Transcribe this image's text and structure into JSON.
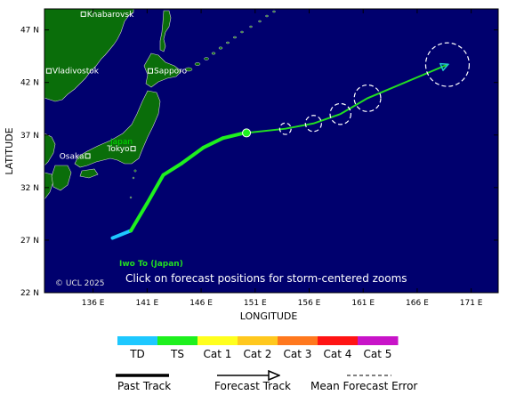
{
  "map": {
    "axes": {
      "xlabel": "LONGITUDE",
      "ylabel": "LATITUDE",
      "x_ticks": [
        "136 E",
        "141 E",
        "146 E",
        "151 E",
        "156 E",
        "161 E",
        "166 E",
        "171 E"
      ],
      "y_ticks": [
        "47 N",
        "42 N",
        "37 N",
        "32 N",
        "27 N",
        "22 N"
      ],
      "lon_range": [
        131.5,
        173.5
      ],
      "lat_range": [
        22,
        49
      ]
    },
    "colors": {
      "ocean": "#00006e",
      "land": "#0a6e0a",
      "forecast_track": "#22dd22",
      "forecast_arrow": "#22cccc"
    },
    "cities": [
      {
        "name": "Khabarovsk",
        "lon": 135.1,
        "lat": 48.5
      },
      {
        "name": "Vladivostok",
        "lon": 131.9,
        "lat": 43.1
      },
      {
        "name": "Sapporo",
        "lon": 141.3,
        "lat": 43.1
      },
      {
        "name": "Tokyo",
        "lon": 139.7,
        "lat": 35.7
      },
      {
        "name": "Osaka",
        "lon": 135.5,
        "lat": 35.0
      }
    ],
    "country_label": "Japan",
    "island_label": "Iwo To (Japan)",
    "copyright": "© UCL 2025",
    "instruction": "Click on forecast positions for storm-centered zooms",
    "past_track": [
      {
        "lon": 137.8,
        "lat": 27.2,
        "cat": "TD"
      },
      {
        "lon": 139.5,
        "lat": 27.9,
        "cat": "TD"
      },
      {
        "lon": 141.0,
        "lat": 30.5,
        "cat": "TS"
      },
      {
        "lon": 142.5,
        "lat": 33.2,
        "cat": "TS"
      },
      {
        "lon": 144.2,
        "lat": 34.3,
        "cat": "TS"
      },
      {
        "lon": 146.2,
        "lat": 35.8,
        "cat": "TS"
      },
      {
        "lon": 148.0,
        "lat": 36.7,
        "cat": "TS"
      },
      {
        "lon": 150.0,
        "lat": 37.2,
        "cat": "TS"
      }
    ],
    "current_position": {
      "lon": 150.2,
      "lat": 37.2
    },
    "forecast_track": [
      {
        "lon": 150.2,
        "lat": 37.2,
        "err_km": 0
      },
      {
        "lon": 153.8,
        "lat": 37.6,
        "err_km": 60
      },
      {
        "lon": 156.4,
        "lat": 38.1,
        "err_km": 85
      },
      {
        "lon": 158.9,
        "lat": 39.0,
        "err_km": 110
      },
      {
        "lon": 161.4,
        "lat": 40.5,
        "err_km": 140
      },
      {
        "lon": 168.8,
        "lat": 43.7,
        "err_km": 230
      }
    ]
  },
  "legend": {
    "categories": [
      {
        "label": "TD",
        "color": "#1ec8ff"
      },
      {
        "label": "TS",
        "color": "#1ef01e"
      },
      {
        "label": "Cat 1",
        "color": "#ffff1e"
      },
      {
        "label": "Cat 2",
        "color": "#ffc81e"
      },
      {
        "label": "Cat 3",
        "color": "#ff781e"
      },
      {
        "label": "Cat 4",
        "color": "#ff1414"
      },
      {
        "label": "Cat 5",
        "color": "#c814c8"
      }
    ],
    "past_track_label": "Past Track",
    "forecast_track_label": "Forecast Track",
    "mean_error_label": "Mean Forecast Error"
  }
}
